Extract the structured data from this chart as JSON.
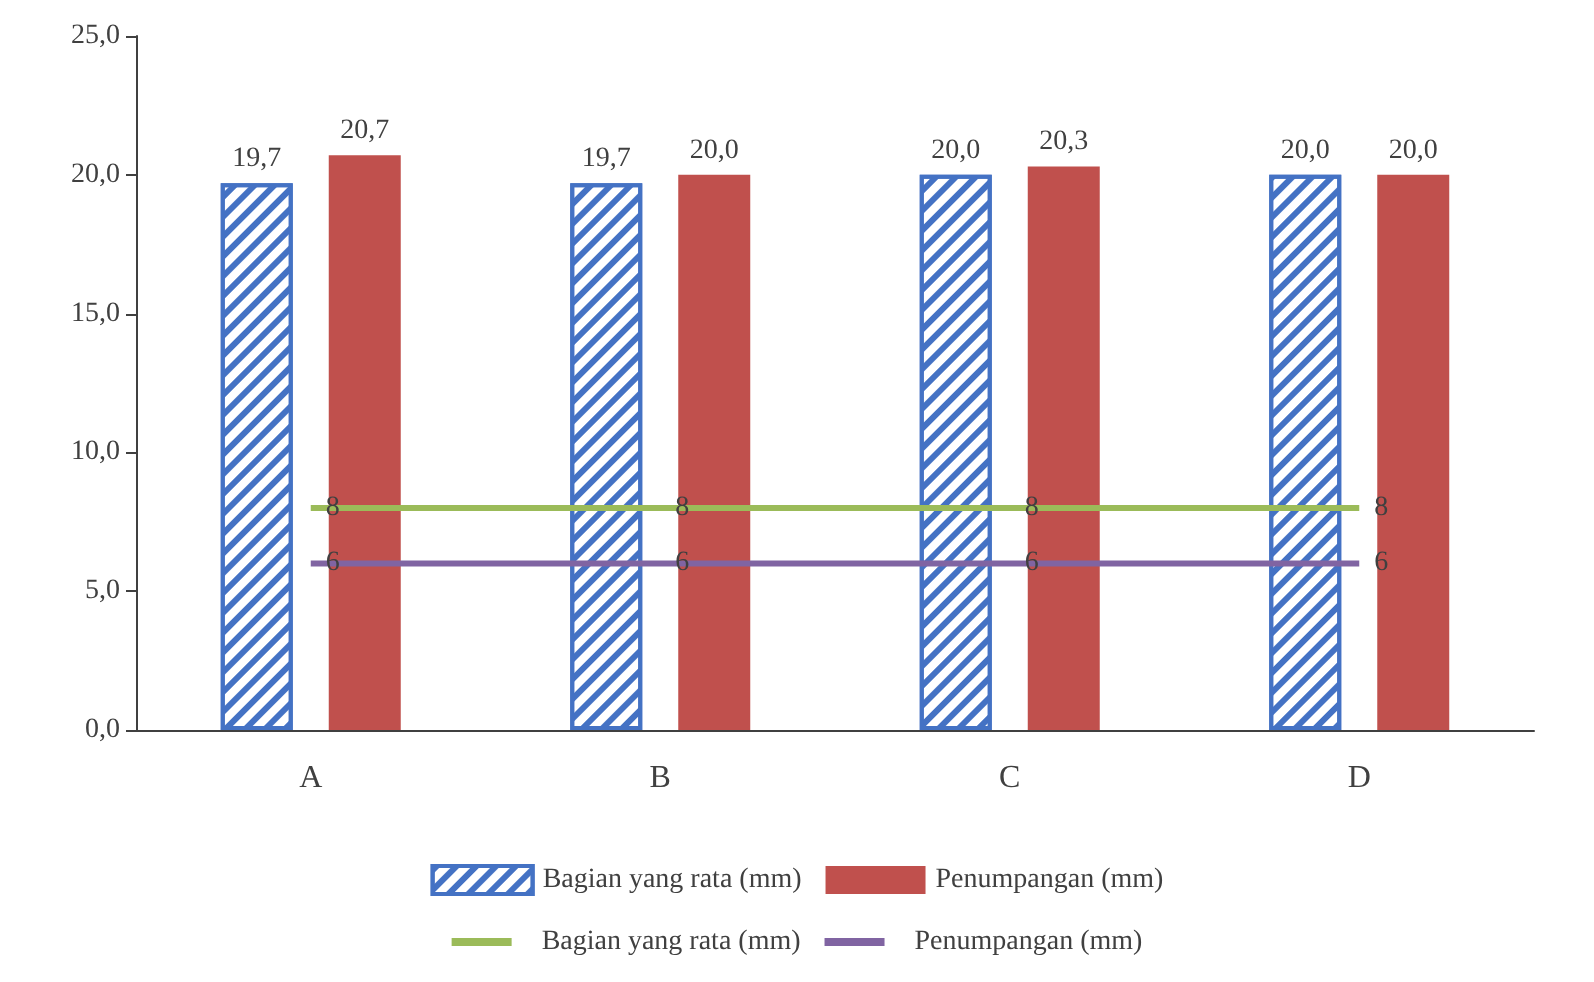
{
  "chart_data": {
    "type": "bar",
    "categories": [
      "A",
      "B",
      "C",
      "D"
    ],
    "series": [
      {
        "name": "Bagian yang rata (mm)",
        "color": "#4472c4",
        "values": [
          19.7,
          19.7,
          20.0,
          20.0
        ],
        "value_labels": [
          "19,7",
          "19,7",
          "20,0",
          "20,0"
        ]
      },
      {
        "name": "Penumpangan (mm)",
        "color": "#c0504d",
        "values": [
          20.7,
          20.0,
          20.3,
          20.0
        ],
        "value_labels": [
          "20,7",
          "20,0",
          "20,3",
          "20,0"
        ]
      },
      {
        "name": "Bagian yang rata (mm)",
        "type": "line",
        "color": "#9bbb59",
        "values": [
          8,
          8,
          8,
          8
        ],
        "value_labels": [
          "8",
          "8",
          "8",
          "8"
        ]
      },
      {
        "name": "Penumpangan (mm)",
        "type": "line",
        "color": "#8064a2",
        "values": [
          6,
          6,
          6,
          6
        ],
        "value_labels": [
          "6",
          "6",
          "6",
          "6"
        ]
      }
    ],
    "ylim": [
      0,
      25
    ],
    "yticks": [
      {
        "value": 0,
        "label": "0,0"
      },
      {
        "value": 5,
        "label": "5,0"
      },
      {
        "value": 10,
        "label": "10,0"
      },
      {
        "value": 15,
        "label": "15,0"
      },
      {
        "value": 20,
        "label": "20,0"
      },
      {
        "value": 25,
        "label": "25,0"
      }
    ],
    "grid": false,
    "legend": "bottom",
    "marker": "none"
  }
}
